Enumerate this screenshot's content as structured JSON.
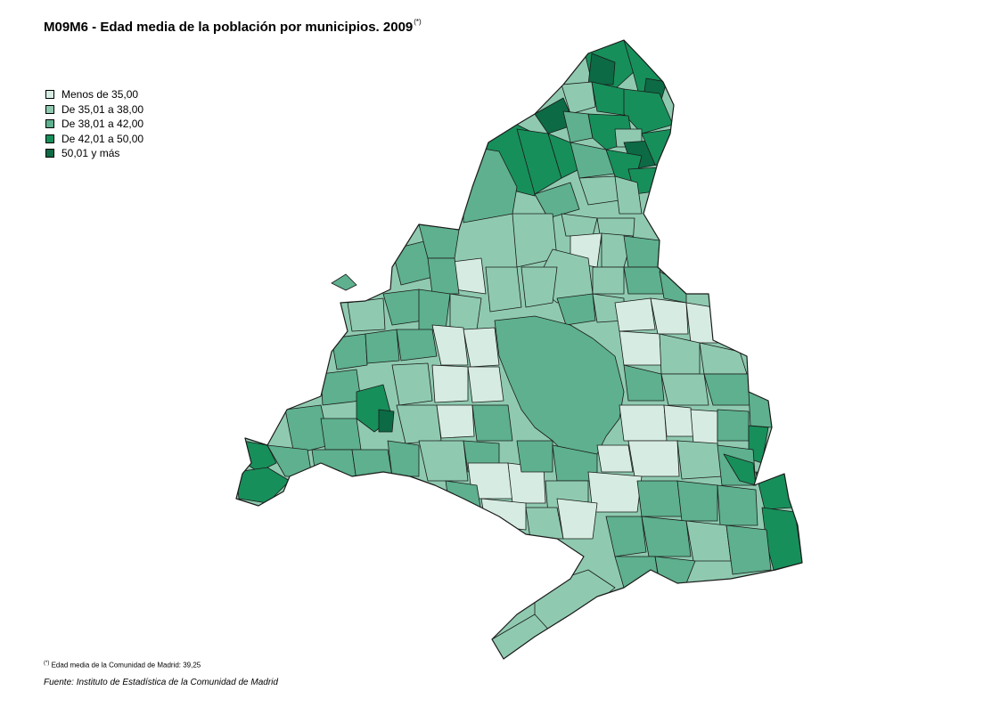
{
  "title": {
    "text": "M09M6 - Edad media de la población por municipios. 2009",
    "superscript": "(*)"
  },
  "legend": {
    "items": [
      {
        "label": "Menos de 35,00",
        "color": "#d6ece2"
      },
      {
        "label": "De 35,01 a 38,00",
        "color": "#8fcab0"
      },
      {
        "label": "De 38,01 a 42,00",
        "color": "#5eb08e"
      },
      {
        "label": "De 42,01 a 50,00",
        "color": "#178f5a"
      },
      {
        "label": "50,01 y más",
        "color": "#0c6a45"
      }
    ]
  },
  "map": {
    "region": "Comunidad de Madrid",
    "classes_colors": [
      "#d6ece2",
      "#8fcab0",
      "#5eb08e",
      "#178f5a",
      "#0c6a45"
    ]
  },
  "footnote": {
    "marker": "(*)",
    "text": "Edad media de la Comunidad de Madrid: 39,25"
  },
  "source": {
    "text": "Fuente: Instituto de Estadística de la Comunidad de Madrid"
  }
}
